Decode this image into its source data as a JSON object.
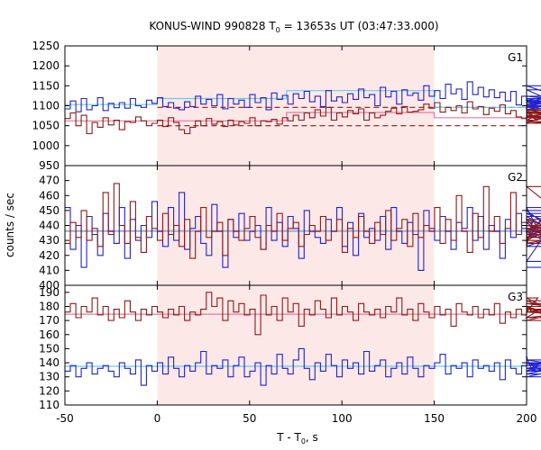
{
  "chart_data": {
    "type": "line",
    "title_main": "KONUS-WIND 990828 T",
    "title_sub": "0",
    "title_rest": " = 13653s UT (03:47:33.000)",
    "xlabel_main": "T - T",
    "xlabel_sub": "0",
    "xlabel_rest": ", s",
    "ylabel": "counts / sec",
    "xlim": [
      -50,
      200
    ],
    "x_ticks": [
      -50,
      0,
      50,
      100,
      150,
      200
    ],
    "highlight_interval": [
      0,
      150
    ],
    "highlight_color": "#fde8e8",
    "bin_width": 2.944,
    "panels": [
      {
        "label": "G1",
        "ylim": [
          950,
          1250
        ],
        "y_ticks": [
          950,
          1000,
          1050,
          1100,
          1150,
          1200,
          1250
        ],
        "series": [
          {
            "color": "#2222cc",
            "values": [
              1092,
              1112,
              1085,
              1118,
              1090,
              1100,
              1120,
              1088,
              1106,
              1095,
              1108,
              1094,
              1118,
              1100,
              1096,
              1114,
              1106,
              1120,
              1098,
              1108,
              1094,
              1090,
              1110,
              1098,
              1124,
              1104,
              1116,
              1100,
              1128,
              1092,
              1118,
              1104,
              1114,
              1096,
              1128,
              1108,
              1120,
              1090,
              1132,
              1116,
              1126,
              1104,
              1130,
              1118,
              1136,
              1110,
              1124,
              1098,
              1138,
              1112,
              1122,
              1108,
              1130,
              1116,
              1142,
              1120,
              1128,
              1100,
              1146,
              1122,
              1136,
              1104,
              1140,
              1126,
              1132,
              1114,
              1150,
              1124,
              1138,
              1118,
              1154,
              1130,
              1142,
              1116,
              1160,
              1128,
              1146,
              1122,
              1140,
              1120,
              1134,
              1112,
              1136,
              1102,
              1124,
              1108,
              1114,
              1096,
              1110,
              1100,
              1140,
              1104,
              1090,
              1118,
              1098,
              1124,
              1108,
              1150,
              1090,
              1112
            ]
          },
          {
            "color": "#8b1a1a",
            "values": [
              1068,
              1082,
              1050,
              1076,
              1030,
              1058,
              1046,
              1070,
              1052,
              1064,
              1040,
              1060,
              1058,
              1072,
              1062,
              1050,
              1056,
              1064,
              1048,
              1070,
              1058,
              1040,
              1030,
              1046,
              1062,
              1050,
              1068,
              1054,
              1060,
              1048,
              1064,
              1052,
              1060,
              1056,
              1070,
              1050,
              1062,
              1060,
              1066,
              1054,
              1070,
              1062,
              1076,
              1064,
              1082,
              1070,
              1090,
              1074,
              1096,
              1064,
              1082,
              1072,
              1088,
              1080,
              1092,
              1064,
              1082,
              1070,
              1076,
              1086,
              1094,
              1080,
              1098,
              1084,
              1086,
              1090,
              1104,
              1094,
              1108,
              1084,
              1096,
              1088,
              1100,
              1082,
              1110,
              1092,
              1098,
              1078,
              1094,
              1086,
              1102,
              1080,
              1088,
              1072,
              1068,
              1092,
              1076,
              1064,
              1082,
              1060,
              1056,
              1090,
              1072,
              1060,
              1084,
              1074,
              1090,
              1082,
              1070,
              1088
            ]
          }
        ],
        "bg_lines": [
          {
            "color": "#8b1a1a",
            "dash": true,
            "segments": [
              [
                0,
                1050
              ],
              [
                150,
                1050
              ],
              [
                150,
                1050
              ],
              [
                200,
                1050
              ]
            ]
          },
          {
            "color": "#8b1a1a",
            "dash": true,
            "segments": [
              [
                0,
                1096
              ],
              [
                150,
                1096
              ],
              [
                150,
                1096
              ],
              [
                200,
                1096
              ]
            ]
          },
          {
            "color": "#e27b9c",
            "dash": false,
            "segments": [
              [
                -50,
                1062
              ],
              [
                0,
                1062
              ],
              [
                0,
                1062
              ],
              [
                70,
                1062
              ],
              [
                70,
                1083
              ],
              [
                150,
                1083
              ],
              [
                150,
                1070
              ],
              [
                200,
                1070
              ]
            ]
          },
          {
            "color": "#66ccee",
            "dash": false,
            "segments": [
              [
                -50,
                1103
              ],
              [
                0,
                1103
              ],
              [
                0,
                1118
              ],
              [
                70,
                1118
              ],
              [
                70,
                1138
              ],
              [
                150,
                1138
              ],
              [
                150,
                1096
              ],
              [
                200,
                1096
              ]
            ]
          }
        ]
      },
      {
        "label": "G2",
        "ylim": [
          400,
          480
        ],
        "y_ticks": [
          400,
          410,
          420,
          430,
          440,
          450,
          460,
          470
        ],
        "series": [
          {
            "color": "#2222cc",
            "values": [
              452,
              424,
              440,
              412,
              446,
              434,
              420,
              448,
              436,
              428,
              452,
              418,
              444,
              430,
              440,
              432,
              456,
              436,
              426,
              452,
              430,
              462,
              424,
              438,
              446,
              428,
              420,
              454,
              436,
              412,
              444,
              432,
              448,
              430,
              436,
              440,
              424,
              452,
              430,
              442,
              426,
              446,
              438,
              418,
              450,
              436,
              432,
              428,
              444,
              436,
              452,
              426,
              442,
              420,
              448,
              432,
              438,
              430,
              446,
              424,
              452,
              436,
              428,
              442,
              434,
              410,
              450,
              438,
              430,
              446,
              436,
              424,
              442,
              438,
              452,
              430,
              446,
              424,
              440,
              436,
              418,
              444,
              432,
              448,
              438,
              426,
              442,
              436,
              430,
              452,
              416,
              448,
              438,
              432,
              446,
              426,
              440,
              434,
              450,
              412
            ]
          },
          {
            "color": "#8b1a1a",
            "values": [
              428,
              442,
              432,
              450,
              430,
              438,
              426,
              462,
              434,
              468,
              440,
              428,
              456,
              432,
              422,
              446,
              438,
              430,
              448,
              434,
              440,
              426,
              444,
              418,
              436,
              452,
              432,
              436,
              442,
              420,
              444,
              436,
              430,
              438,
              446,
              432,
              424,
              440,
              436,
              448,
              430,
              438,
              442,
              426,
              434,
              440,
              436,
              446,
              430,
              436,
              444,
              422,
              438,
              432,
              446,
              436,
              428,
              442,
              434,
              450,
              430,
              438,
              444,
              426,
              448,
              432,
              440,
              436,
              452,
              428,
              444,
              430,
              460,
              436,
              422,
              448,
              432,
              466,
              436,
              446,
              428,
              438,
              462,
              434,
              442,
              426,
              444,
              436,
              432,
              440,
              436,
              438,
              430,
              444,
              432,
              440,
              436,
              466,
              428,
              438
            ]
          }
        ],
        "bg_lines": [
          {
            "color": "#e27b9c",
            "dash": false,
            "segments": [
              [
                -50,
                436.5
              ],
              [
                200,
                436.5
              ]
            ]
          },
          {
            "color": "#66ccee",
            "dash": false,
            "segments": [
              [
                -50,
                436
              ],
              [
                200,
                436
              ]
            ]
          }
        ]
      },
      {
        "label": "G3",
        "ylim": [
          110,
          195
        ],
        "y_ticks": [
          110,
          120,
          130,
          140,
          150,
          160,
          170,
          180,
          190
        ],
        "series": [
          {
            "color": "#8b1a1a",
            "values": [
              176,
              182,
              172,
              180,
              176,
              186,
              174,
              180,
              170,
              178,
              172,
              184,
              176,
              170,
              178,
              174,
              180,
              176,
              172,
              178,
              174,
              180,
              170,
              176,
              174,
              178,
              190,
              180,
              186,
              170,
              184,
              176,
              182,
              174,
              178,
              160,
              188,
              174,
              180,
              170,
              186,
              176,
              182,
              166,
              178,
              174,
              184,
              178,
              172,
              186,
              174,
              180,
              176,
              170,
              182,
              176,
              174,
              178,
              172,
              180,
              176,
              186,
              174,
              178,
              170,
              182,
              176,
              172,
              180,
              174,
              178,
              166,
              182,
              176,
              174,
              180,
              172,
              178,
              174,
              182,
              168,
              176,
              172,
              178,
              174,
              180,
              176,
              186,
              180,
              172,
              184,
              176,
              180,
              170,
              178,
              176,
              182,
              176,
              172,
              178
            ]
          },
          {
            "color": "#2222cc",
            "values": [
              134,
              138,
              130,
              136,
              140,
              132,
              136,
              138,
              134,
              130,
              140,
              136,
              132,
              142,
              124,
              138,
              134,
              140,
              132,
              144,
              136,
              130,
              138,
              134,
              140,
              148,
              132,
              138,
              136,
              142,
              130,
              138,
              144,
              130,
              134,
              140,
              124,
              138,
              132,
              146,
              136,
              132,
              142,
              150,
              136,
              128,
              140,
              134,
              146,
              138,
              130,
              142,
              136,
              140,
              132,
              148,
              134,
              138,
              142,
              130,
              136,
              140,
              132,
              144,
              136,
              130,
              138,
              136,
              140,
              146,
              132,
              138,
              136,
              140,
              130,
              142,
              136,
              138,
              134,
              140,
              128,
              142,
              136,
              132,
              138,
              144,
              134,
              138,
              140,
              132,
              136,
              140,
              134,
              138,
              142,
              136,
              130,
              140,
              136,
              138
            ]
          }
        ],
        "bg_lines": [
          {
            "color": "#e27b9c",
            "dash": false,
            "segments": [
              [
                -50,
                174.5
              ],
              [
                200,
                174.5
              ]
            ]
          },
          {
            "color": "#66ccee",
            "dash": false,
            "segments": [
              [
                -50,
                137.5
              ],
              [
                200,
                137.5
              ]
            ]
          }
        ]
      }
    ]
  }
}
